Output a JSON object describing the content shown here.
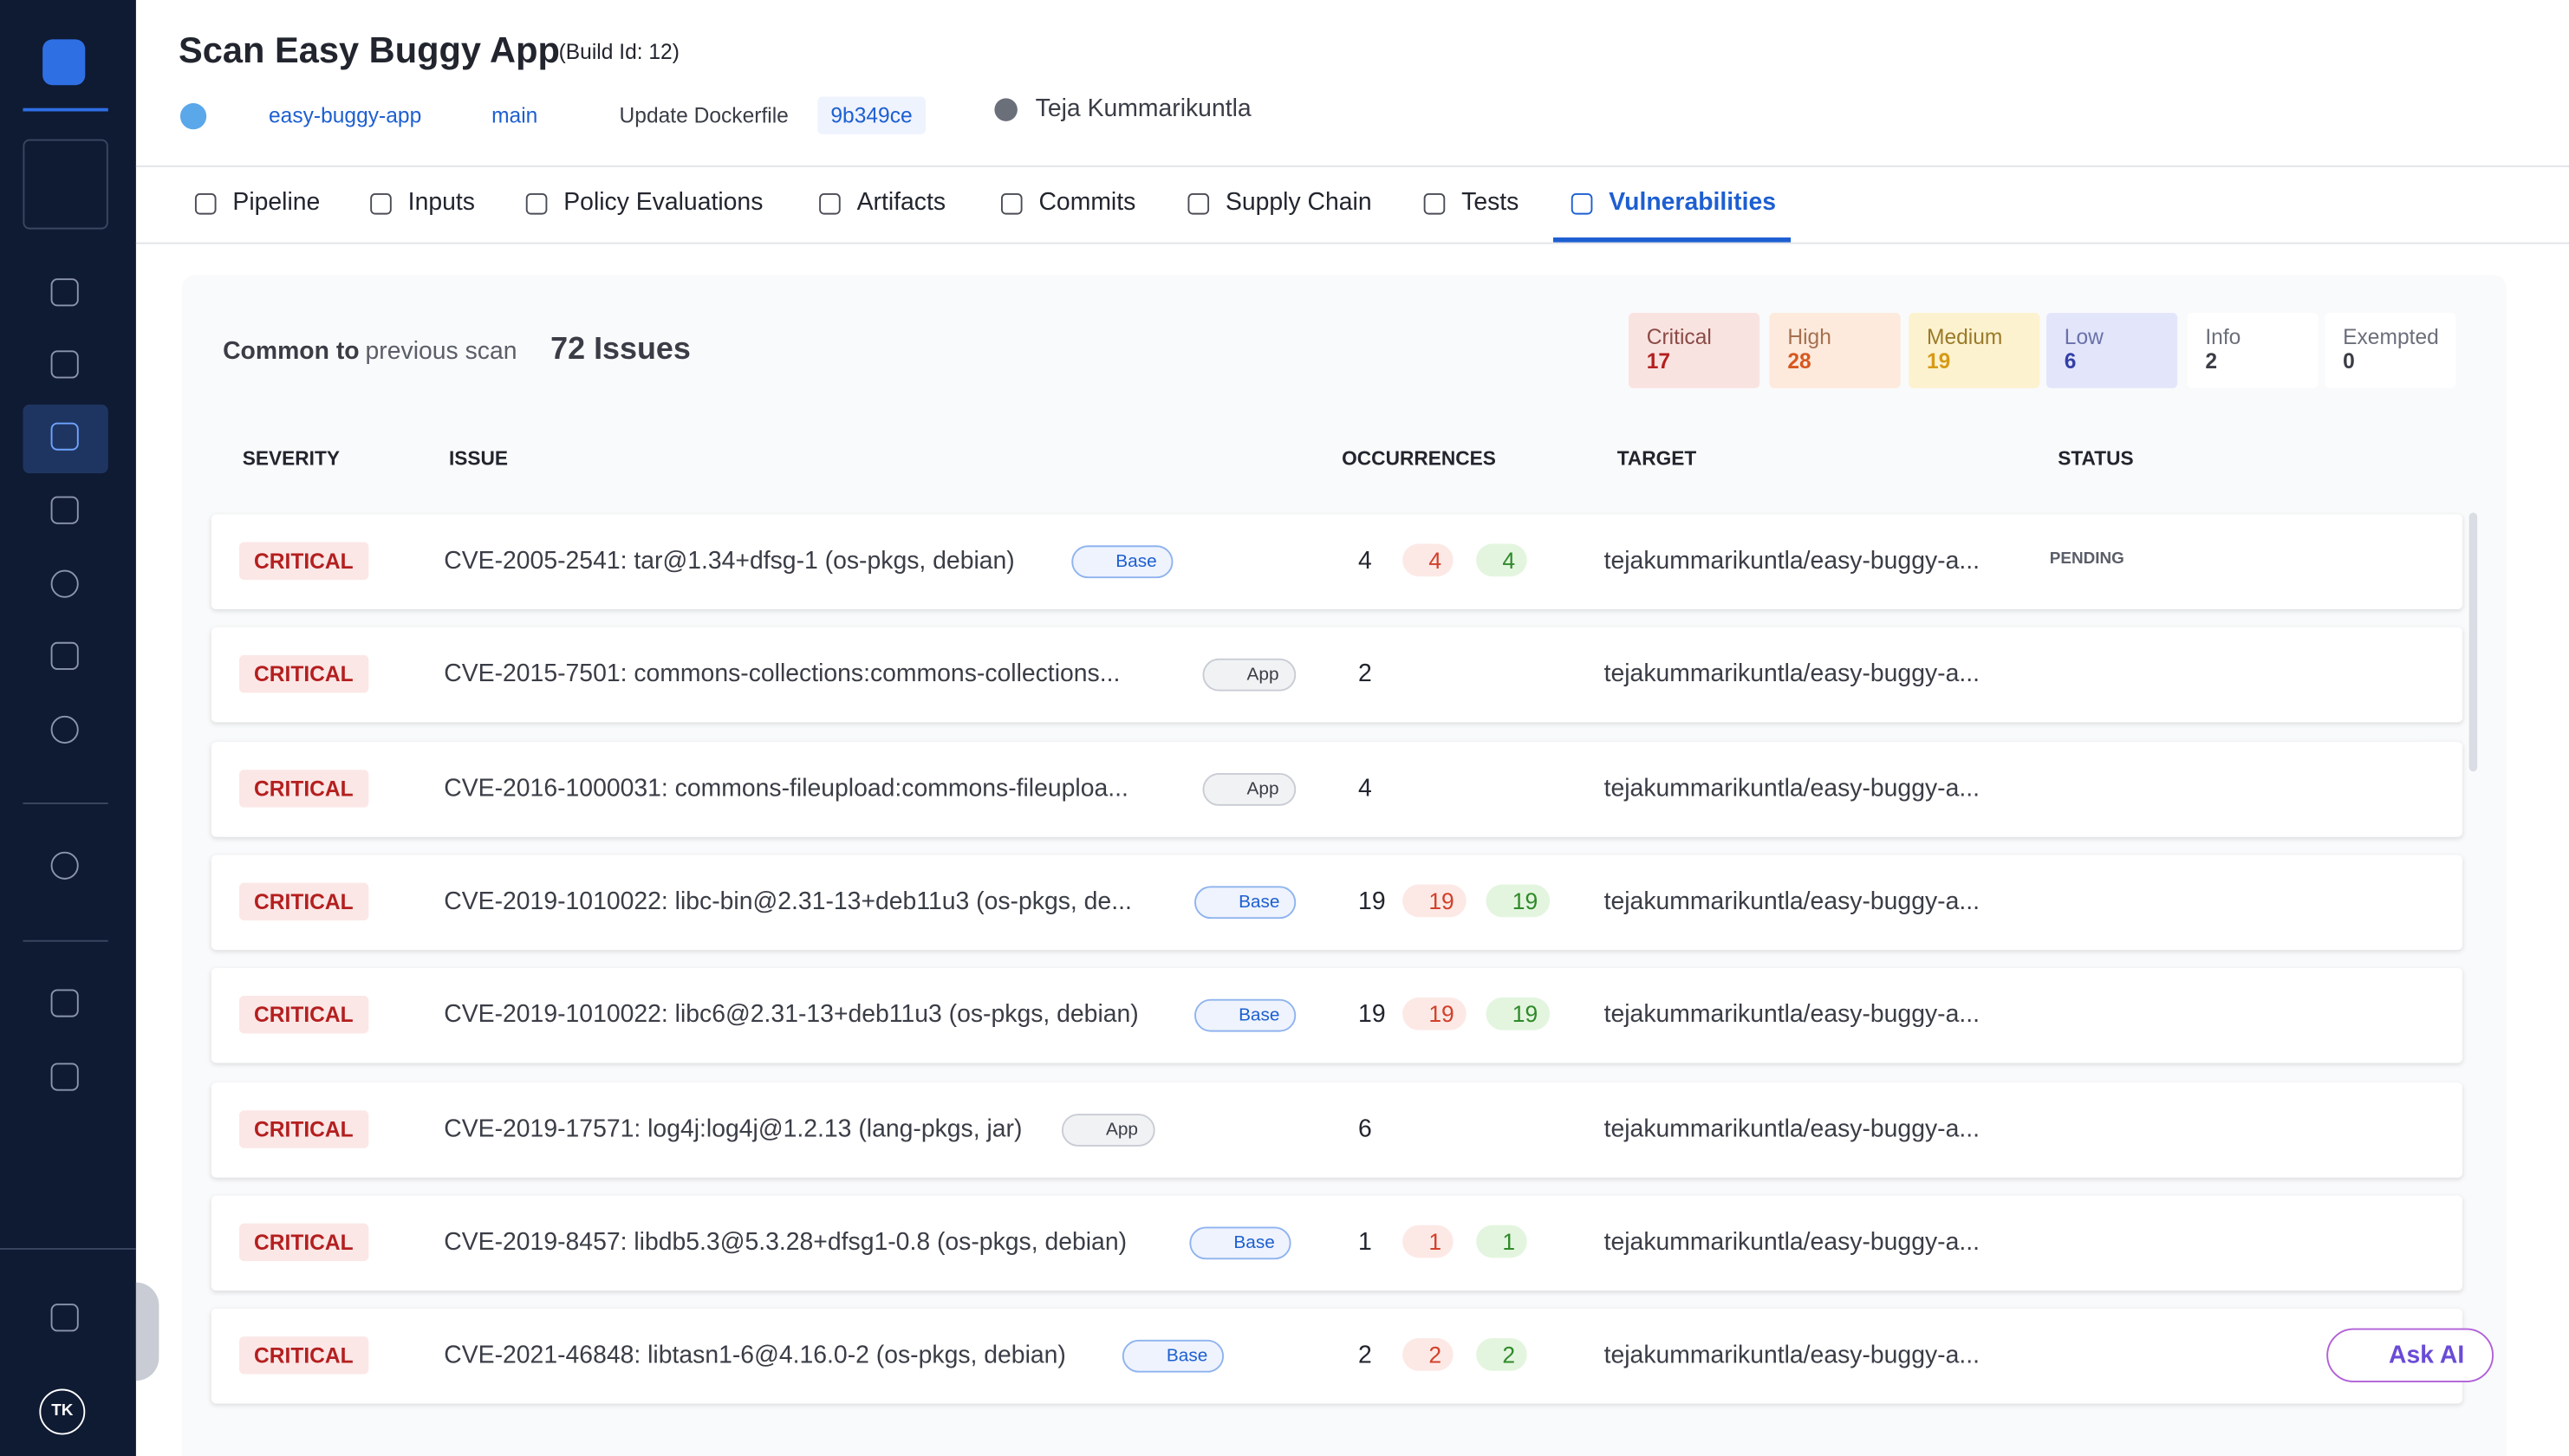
{
  "header": {
    "title": "Scan Easy Buggy App",
    "build": "(Build Id: 12)",
    "repo": "easy-buggy-app",
    "branch": "main",
    "commit_message": "Update Dockerfile",
    "commit": "9b349ce",
    "user": "Teja Kummarikuntla",
    "avatar": "TK"
  },
  "tabs": [
    "Pipeline",
    "Inputs",
    "Policy Evaluations",
    "Artifacts",
    "Commits",
    "Supply Chain",
    "Tests",
    "Vulnerabilities"
  ],
  "summary": {
    "prefix": "Common to",
    "suffix": "previous scan",
    "issues": "72 Issues",
    "counts": [
      {
        "label": "Critical",
        "value": 17
      },
      {
        "label": "High",
        "value": 28
      },
      {
        "label": "Medium",
        "value": 19
      },
      {
        "label": "Low",
        "value": 6
      },
      {
        "label": "Info",
        "value": 2
      },
      {
        "label": "Exempted",
        "value": 0
      }
    ]
  },
  "table": {
    "headers": [
      "SEVERITY",
      "ISSUE",
      "OCCURRENCES",
      "TARGET",
      "STATUS"
    ],
    "rows": [
      {
        "severity": "CRITICAL",
        "issue": "CVE-2005-2541: tar@1.34+dfsg-1 (os-pkgs, debian)",
        "tag": "Base",
        "occurrences": 4,
        "up": 4,
        "down": 4,
        "target": "tejakummarikuntla/easy-buggy-a...",
        "status": "PENDING"
      },
      {
        "severity": "CRITICAL",
        "issue": "CVE-2015-7501: commons-collections:commons-collections...",
        "tag": "App",
        "occurrences": 2,
        "target": "tejakummarikuntla/easy-buggy-a..."
      },
      {
        "severity": "CRITICAL",
        "issue": "CVE-2016-1000031: commons-fileupload:commons-fileuploa...",
        "tag": "App",
        "occurrences": 4,
        "target": "tejakummarikuntla/easy-buggy-a..."
      },
      {
        "severity": "CRITICAL",
        "issue": "CVE-2019-1010022: libc-bin@2.31-13+deb11u3 (os-pkgs, de...",
        "tag": "Base",
        "occurrences": 19,
        "up": 19,
        "down": 19,
        "target": "tejakummarikuntla/easy-buggy-a..."
      },
      {
        "severity": "CRITICAL",
        "issue": "CVE-2019-1010022: libc6@2.31-13+deb11u3 (os-pkgs, debian)",
        "tag": "Base",
        "occurrences": 19,
        "up": 19,
        "down": 19,
        "target": "tejakummarikuntla/easy-buggy-a..."
      },
      {
        "severity": "CRITICAL",
        "issue": "CVE-2019-17571: log4j:log4j@1.2.13 (lang-pkgs, jar)",
        "tag": "App",
        "occurrences": 6,
        "target": "tejakummarikuntla/easy-buggy-a..."
      },
      {
        "severity": "CRITICAL",
        "issue": "CVE-2019-8457: libdb5.3@5.3.28+dfsg1-0.8 (os-pkgs, debian)",
        "tag": "Base",
        "occurrences": 1,
        "up": 1,
        "down": 1,
        "target": "tejakummarikuntla/easy-buggy-a..."
      },
      {
        "severity": "CRITICAL",
        "issue": "CVE-2021-46848: libtasn1-6@4.16.0-2 (os-pkgs, debian)",
        "tag": "Base",
        "occurrences": 2,
        "up": 2,
        "down": 2,
        "target": "tejakummarikuntla/easy-buggy-a..."
      }
    ]
  },
  "ask_ai": "Ask AI"
}
